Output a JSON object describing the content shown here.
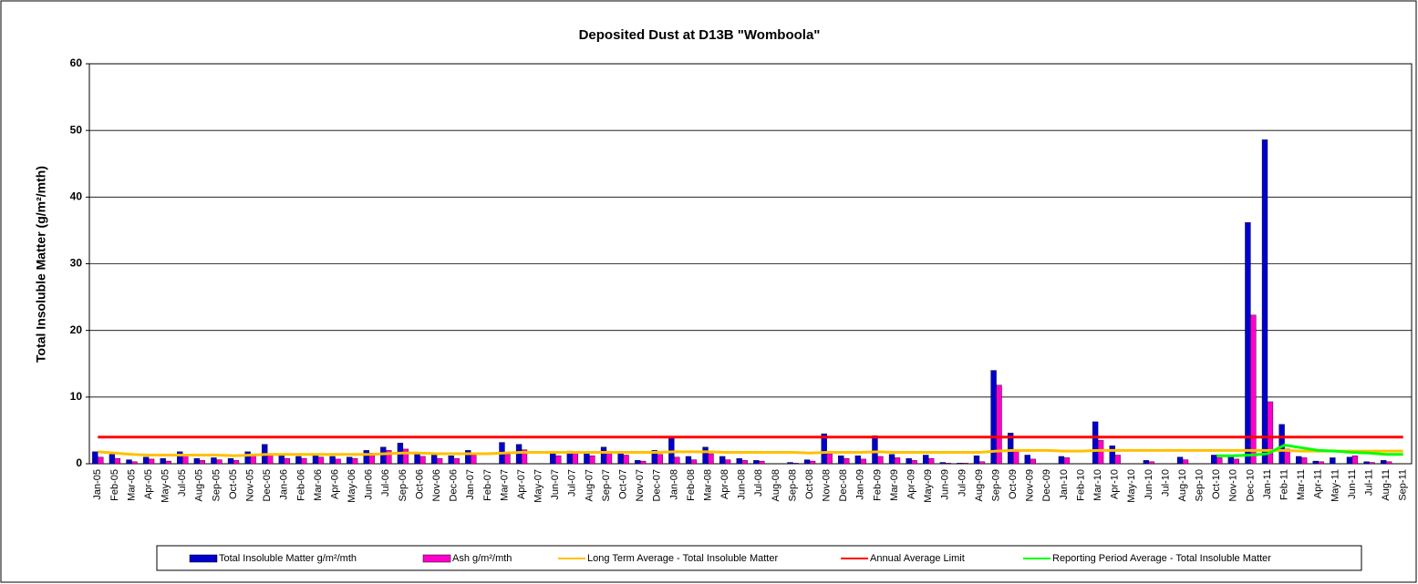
{
  "chart_data": {
    "type": "bar_line",
    "title": "Deposited Dust at D13B \"Womboola\"",
    "y_label": "Total Insoluble Matter  (g/m²/mth)",
    "categories": [
      "Jan-05",
      "Feb-05",
      "Mar-05",
      "Apr-05",
      "May-05",
      "Jul-05",
      "Aug-05",
      "Sep-05",
      "Oct-05",
      "Nov-05",
      "Dec-05",
      "Jan-06",
      "Feb-06",
      "Mar-06",
      "Apr-06",
      "May-06",
      "Jun-06",
      "Jul-06",
      "Sep-06",
      "Oct-06",
      "Nov-06",
      "Dec-06",
      "Jan-07",
      "Feb-07",
      "Mar-07",
      "Apr-07",
      "May-07",
      "Jun-07",
      "Jul-07",
      "Aug-07",
      "Sep-07",
      "Oct-07",
      "Nov-07",
      "Dec-07",
      "Jan-08",
      "Feb-08",
      "Mar-08",
      "Apr-08",
      "Jun-08",
      "Jul-08",
      "Aug-08",
      "Sep-08",
      "Oct-08",
      "Nov-08",
      "Dec-08",
      "Jan-09",
      "Feb-09",
      "Mar-09",
      "Apr-09",
      "May-09",
      "Jun-09",
      "Jul-09",
      "Aug-09",
      "Sep-09",
      "Oct-09",
      "Nov-09",
      "Dec-09",
      "Jan-10",
      "Feb-10",
      "Mar-10",
      "Apr-10",
      "May-10",
      "Jun-10",
      "Jul-10",
      "Aug-10",
      "Sep-10",
      "Oct-10",
      "Nov-10",
      "Dec-10",
      "Jan-11",
      "Feb-11",
      "Mar-11",
      "Apr-11",
      "May-11",
      "Jun-11",
      "Jul-11",
      "Aug-11",
      "Sep-11"
    ],
    "series": [
      {
        "name": "Total Insoluble Matter  g/m²/mth",
        "kind": "bar",
        "color": "#0000cc",
        "values": [
          1.8,
          1.4,
          0.6,
          1.0,
          0.8,
          1.8,
          0.8,
          0.9,
          0.8,
          1.8,
          2.9,
          1.2,
          1.1,
          1.2,
          1.1,
          1.0,
          2.0,
          2.5,
          3.1,
          1.4,
          1.3,
          1.2,
          2.0,
          null,
          3.2,
          2.9,
          null,
          1.5,
          1.9,
          1.6,
          2.5,
          1.8,
          0.5,
          2.0,
          3.8,
          1.1,
          2.5,
          1.1,
          0.8,
          0.5,
          null,
          0.2,
          0.6,
          4.5,
          1.2,
          1.2,
          4.2,
          1.4,
          0.8,
          1.3,
          0.2,
          0.1,
          1.2,
          14.0,
          4.6,
          1.3,
          null,
          1.1,
          null,
          6.3,
          2.7,
          null,
          0.5,
          null,
          1.0,
          null,
          1.3,
          1.2,
          36.2,
          48.6,
          5.9,
          1.1,
          0.4,
          0.9,
          1.0,
          0.3,
          0.5,
          null
        ]
      },
      {
        "name": "Ash  g/m²/mth",
        "kind": "bar",
        "color": "#ff00cc",
        "values": [
          1.0,
          0.8,
          0.3,
          0.7,
          0.4,
          1.2,
          0.5,
          0.6,
          0.5,
          1.2,
          1.3,
          0.8,
          0.8,
          1.0,
          0.7,
          0.8,
          1.6,
          2.0,
          2.2,
          1.1,
          0.8,
          0.8,
          1.3,
          null,
          1.4,
          2.1,
          null,
          1.2,
          1.7,
          1.2,
          1.8,
          1.3,
          0.4,
          1.4,
          1.0,
          0.6,
          1.5,
          0.6,
          0.5,
          0.4,
          null,
          0.1,
          0.4,
          1.5,
          0.8,
          0.7,
          1.1,
          0.9,
          0.5,
          0.8,
          0.1,
          0.1,
          0.3,
          11.8,
          2.0,
          0.7,
          null,
          0.9,
          null,
          3.5,
          1.3,
          null,
          0.3,
          null,
          0.6,
          null,
          0.9,
          0.7,
          22.3,
          9.3,
          2.2,
          0.9,
          0.3,
          null,
          1.2,
          0.2,
          0.3,
          null
        ]
      },
      {
        "name": "Long Term Average - Total Insoluble Matter",
        "kind": "line",
        "color": "#ffc000",
        "values": [
          1.8,
          1.6,
          1.4,
          1.3,
          1.3,
          1.3,
          1.3,
          1.3,
          1.2,
          1.3,
          1.4,
          1.4,
          1.4,
          1.4,
          1.4,
          1.4,
          1.4,
          1.5,
          1.6,
          1.6,
          1.5,
          1.5,
          1.5,
          1.5,
          1.6,
          1.7,
          1.7,
          1.7,
          1.7,
          1.7,
          1.7,
          1.7,
          1.7,
          1.7,
          1.8,
          1.8,
          1.8,
          1.7,
          1.7,
          1.7,
          1.7,
          1.7,
          1.6,
          1.7,
          1.7,
          1.7,
          1.8,
          1.7,
          1.7,
          1.7,
          1.7,
          1.7,
          1.7,
          1.9,
          2.0,
          2.0,
          2.0,
          1.9,
          1.9,
          2.0,
          2.0,
          2.0,
          2.0,
          2.0,
          2.0,
          2.0,
          2.0,
          2.0,
          2.0,
          2.0,
          2.0,
          1.9,
          1.9,
          1.9,
          1.9,
          1.9,
          1.9,
          1.9
        ]
      },
      {
        "name": "Annual Average Limit",
        "kind": "line",
        "color": "#ff0000",
        "values": [
          4,
          4,
          4,
          4,
          4,
          4,
          4,
          4,
          4,
          4,
          4,
          4,
          4,
          4,
          4,
          4,
          4,
          4,
          4,
          4,
          4,
          4,
          4,
          4,
          4,
          4,
          4,
          4,
          4,
          4,
          4,
          4,
          4,
          4,
          4,
          4,
          4,
          4,
          4,
          4,
          4,
          4,
          4,
          4,
          4,
          4,
          4,
          4,
          4,
          4,
          4,
          4,
          4,
          4,
          4,
          4,
          4,
          4,
          4,
          4,
          4,
          4,
          4,
          4,
          4,
          4,
          4,
          4,
          4,
          4,
          4,
          4,
          4,
          4,
          4,
          4,
          4,
          4
        ]
      },
      {
        "name": "Reporting Period Average - Total Insoluble Matter",
        "kind": "line",
        "color": "#00ff00",
        "values": [
          null,
          null,
          null,
          null,
          null,
          null,
          null,
          null,
          null,
          null,
          null,
          null,
          null,
          null,
          null,
          null,
          null,
          null,
          null,
          null,
          null,
          null,
          null,
          null,
          null,
          null,
          null,
          null,
          null,
          null,
          null,
          null,
          null,
          null,
          null,
          null,
          null,
          null,
          null,
          null,
          null,
          null,
          null,
          null,
          null,
          null,
          null,
          null,
          null,
          null,
          null,
          null,
          null,
          null,
          null,
          null,
          null,
          null,
          null,
          null,
          null,
          null,
          null,
          null,
          null,
          null,
          1.2,
          1.2,
          1.3,
          1.5,
          2.8,
          2.4,
          2.0,
          1.9,
          1.7,
          1.6,
          1.4,
          1.4
        ]
      }
    ],
    "ylim": [
      0,
      60
    ],
    "yticks": [
      0,
      10,
      20,
      30,
      40,
      50,
      60
    ],
    "grid": true,
    "legend": "bottom"
  }
}
